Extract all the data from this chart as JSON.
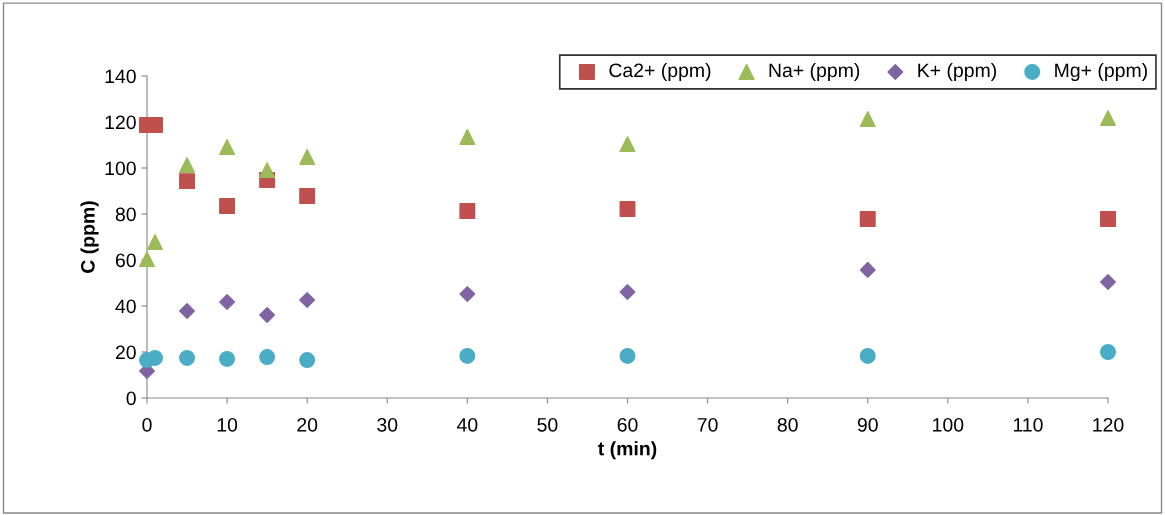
{
  "chart_data": {
    "type": "scatter",
    "xlabel": "t (min)",
    "ylabel": "C (ppm)",
    "xlim": [
      0,
      120
    ],
    "xticks": [
      0,
      10,
      20,
      30,
      40,
      50,
      60,
      70,
      80,
      90,
      100,
      110,
      120
    ],
    "ylim": [
      0,
      140
    ],
    "yticks": [
      0,
      20,
      40,
      60,
      80,
      100,
      120,
      140
    ],
    "grid": false,
    "legend": "top right",
    "series": [
      {
        "name": "Ca2+ (ppm)",
        "color": "#c0504d",
        "marker": "square",
        "x": [
          0,
          1,
          5,
          10,
          15,
          20,
          40,
          60,
          90,
          120
        ],
        "values": [
          118.7,
          118.7,
          94.3,
          83.5,
          94.8,
          87.8,
          81.3,
          82.2,
          77.8,
          77.8
        ]
      },
      {
        "name": "Na+ (ppm)",
        "color": "#9bbb59",
        "marker": "triangle",
        "x": [
          0,
          1,
          5,
          10,
          15,
          20,
          40,
          60,
          90,
          120
        ],
        "values": [
          60.4,
          67.8,
          101.3,
          109.1,
          99.1,
          104.8,
          113.5,
          110.4,
          121.3,
          121.7
        ]
      },
      {
        "name": "K+ (ppm)",
        "color": "#8064a2",
        "marker": "diamond",
        "x": [
          0,
          5,
          10,
          15,
          20,
          40,
          60,
          90,
          120
        ],
        "values": [
          11.7,
          37.8,
          41.7,
          36.1,
          42.6,
          45.2,
          46.1,
          55.7,
          50.4
        ]
      },
      {
        "name": "Mg+ (ppm)",
        "color": "#4bacc6",
        "marker": "circle",
        "x": [
          0,
          1,
          5,
          10,
          15,
          20,
          40,
          60,
          90,
          120
        ],
        "values": [
          16.5,
          17.4,
          17.4,
          17.0,
          17.8,
          16.5,
          18.3,
          18.3,
          18.3,
          20.0
        ]
      }
    ]
  }
}
